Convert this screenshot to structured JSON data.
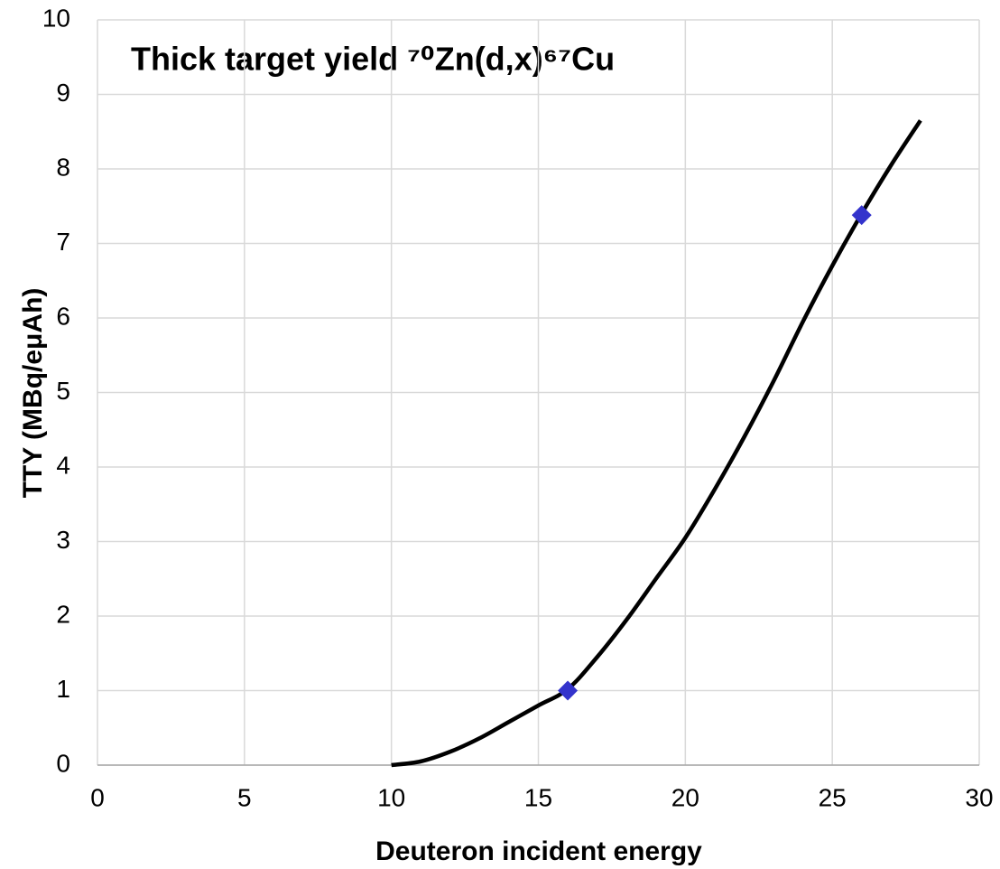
{
  "chart_data": {
    "type": "line",
    "title": "Thick target yield ⁷⁰Zn(d,x)⁶⁷Cu",
    "xlabel": "Deuteron incident energy",
    "ylabel": "TTY (MBq/eμAh)",
    "xlim": [
      0,
      30
    ],
    "xticks": [
      0,
      5,
      10,
      15,
      20,
      25,
      30
    ],
    "ylim": [
      0,
      10
    ],
    "yticks": [
      0,
      1,
      2,
      3,
      4,
      5,
      6,
      7,
      8,
      9,
      10
    ],
    "grid": true,
    "series": [
      {
        "style": "line",
        "color": "#000000",
        "x": [
          10,
          11,
          12,
          13,
          14,
          15,
          16,
          17,
          18,
          19,
          20,
          21,
          22,
          23,
          24,
          25,
          26,
          27,
          28
        ],
        "values": [
          0,
          0.05,
          0.18,
          0.36,
          0.58,
          0.8,
          1.02,
          1.45,
          1.95,
          2.5,
          3.05,
          3.7,
          4.4,
          5.15,
          5.95,
          6.7,
          7.4,
          8.05,
          8.65
        ]
      },
      {
        "style": "markers",
        "marker": "diamond",
        "color": "#3333cc",
        "x": [
          16,
          26
        ],
        "values": [
          1.0,
          7.38
        ]
      }
    ]
  }
}
